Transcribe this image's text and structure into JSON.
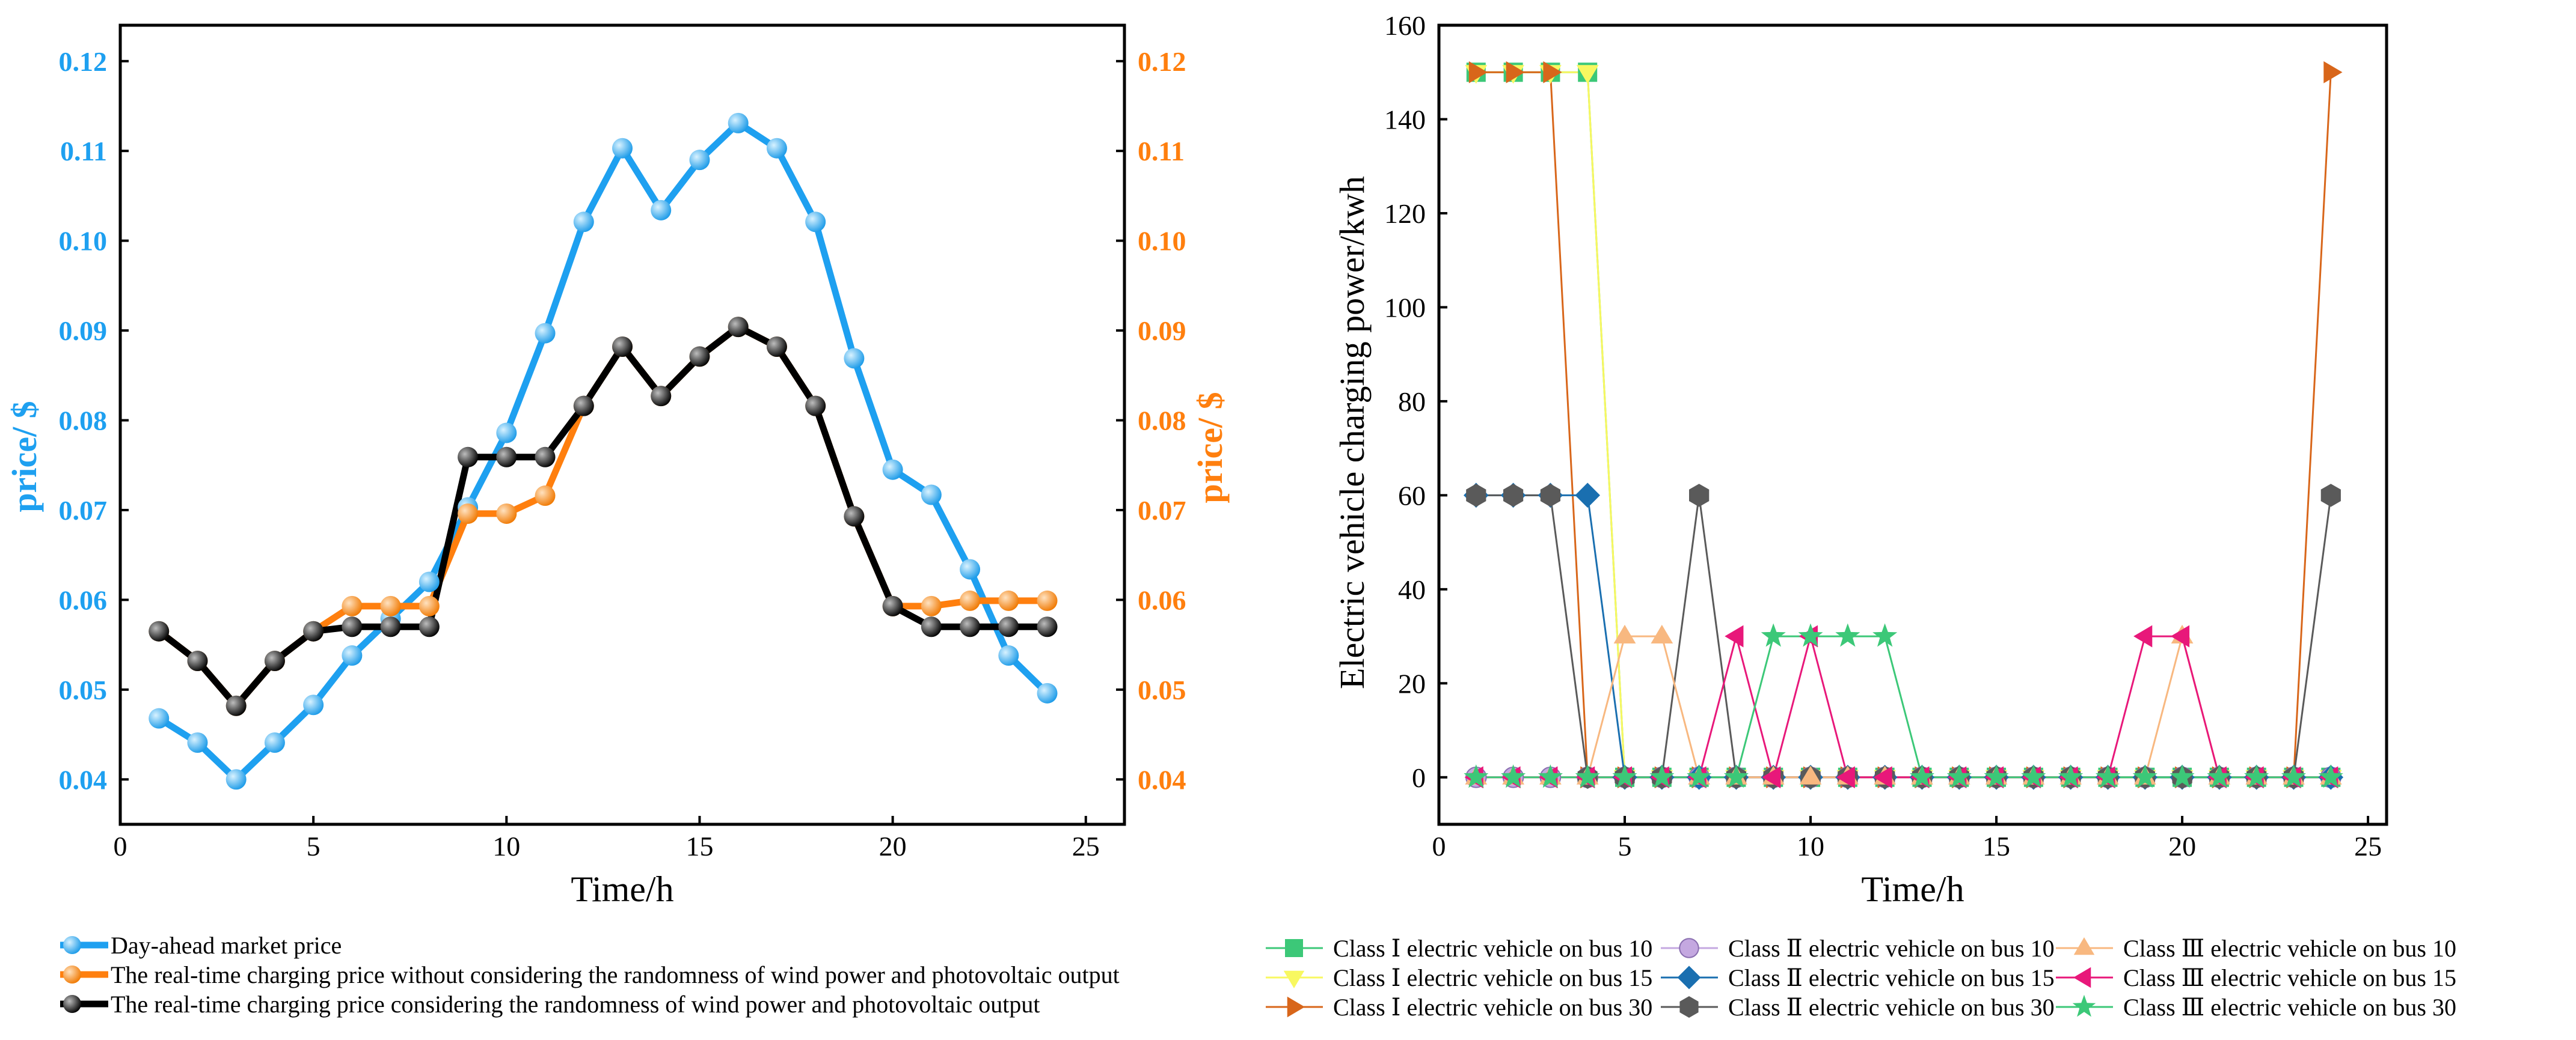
{
  "chart_data": [
    {
      "type": "line",
      "dual_axis": true,
      "xlabel": "Time/h",
      "ylabel_left": "price/ $",
      "ylabel_right": "price/ $",
      "xlim": [
        0,
        26
      ],
      "ylim": [
        0.035,
        0.124
      ],
      "xticks": [
        "0",
        "5",
        "10",
        "15",
        "20",
        "25"
      ],
      "yticks": [
        "0.04",
        "0.05",
        "0.06",
        "0.07",
        "0.08",
        "0.09",
        "0.10",
        "0.11",
        "0.12"
      ],
      "x": [
        1,
        2,
        3,
        4,
        5,
        6,
        7,
        8,
        9,
        10,
        11,
        12,
        13,
        14,
        15,
        16,
        17,
        18,
        19,
        20,
        21,
        22,
        23,
        24
      ],
      "series": [
        {
          "name": "Day-ahead market price",
          "color": "#1ea0f0",
          "values": [
            0.0468,
            0.0441,
            0.04,
            0.0441,
            0.0483,
            0.0538,
            0.0579,
            0.062,
            0.0703,
            0.0786,
            0.0897,
            0.1021,
            0.1103,
            0.1034,
            0.109,
            0.1131,
            0.1103,
            0.1021,
            0.0869,
            0.0745,
            0.0717,
            0.0634,
            0.0538,
            0.0496
          ]
        },
        {
          "name": "The real-time charging price without considering the randomness of wind power and photovoltaic output",
          "color": "#ff7f0e",
          "values": [
            0.0565,
            0.0532,
            0.0482,
            0.0532,
            0.0565,
            0.0593,
            0.0593,
            0.0593,
            0.0696,
            0.0696,
            0.0716,
            0.0816,
            0.0882,
            0.0827,
            0.0871,
            0.0904,
            0.0882,
            0.0816,
            0.0693,
            0.0593,
            0.0593,
            0.0599,
            0.0599,
            0.0599
          ]
        },
        {
          "name": "The real-time charging price considering the randomness of wind power and photovoltaic output",
          "color": "#000000",
          "values": [
            0.0565,
            0.0532,
            0.0482,
            0.0532,
            0.0565,
            0.057,
            0.057,
            0.057,
            0.0759,
            0.0759,
            0.0759,
            0.0816,
            0.0882,
            0.0827,
            0.0871,
            0.0904,
            0.0882,
            0.0816,
            0.0693,
            0.0593,
            0.057,
            0.057,
            0.057,
            0.057
          ]
        }
      ]
    },
    {
      "type": "line",
      "xlabel": "Time/h",
      "ylabel": "Electric vehicle charging power/kwh",
      "xlim": [
        0,
        25.5
      ],
      "ylim": [
        -10,
        160
      ],
      "xticks": [
        "0",
        "5",
        "10",
        "15",
        "20",
        "25"
      ],
      "yticks": [
        "0",
        "20",
        "40",
        "60",
        "80",
        "100",
        "120",
        "140",
        "160"
      ],
      "x": [
        1,
        2,
        3,
        4,
        5,
        6,
        7,
        8,
        9,
        10,
        11,
        12,
        13,
        14,
        15,
        16,
        17,
        18,
        19,
        20,
        21,
        22,
        23,
        24
      ],
      "series": [
        {
          "name": "Class Ⅰ electric vehicle on bus 10",
          "color": "#3cc878",
          "marker": "square",
          "values": [
            150,
            150,
            150,
            150,
            0,
            0,
            0,
            0,
            0,
            0,
            0,
            0,
            0,
            0,
            0,
            0,
            0,
            0,
            0,
            0,
            0,
            0,
            0,
            0
          ]
        },
        {
          "name": "Class Ⅰ electric vehicle on bus 15",
          "color": "#f8f860",
          "marker": "triangle-down",
          "values": [
            150,
            150,
            150,
            150,
            0,
            0,
            0,
            0,
            0,
            0,
            0,
            0,
            0,
            0,
            0,
            0,
            0,
            0,
            0,
            0,
            0,
            0,
            0,
            0
          ]
        },
        {
          "name": "Class Ⅰ electric vehicle on bus 30",
          "color": "#d8661a",
          "marker": "triangle-right",
          "values": [
            150,
            150,
            150,
            0,
            0,
            0,
            0,
            0,
            0,
            0,
            0,
            0,
            0,
            0,
            0,
            0,
            0,
            0,
            0,
            0,
            0,
            0,
            0,
            150
          ]
        },
        {
          "name": "Class Ⅱ electric vehicle on bus 10",
          "color": "#c4a8e0",
          "marker": "circle",
          "values": [
            0,
            0,
            0,
            0,
            0,
            0,
            0,
            0,
            0,
            0,
            0,
            0,
            0,
            0,
            0,
            0,
            0,
            0,
            0,
            0,
            0,
            0,
            0,
            0
          ]
        },
        {
          "name": "Class Ⅱ electric vehicle on bus 15",
          "color": "#1a6fb0",
          "marker": "diamond",
          "values": [
            60,
            60,
            60,
            60,
            0,
            0,
            0,
            0,
            0,
            0,
            0,
            0,
            0,
            0,
            0,
            0,
            0,
            0,
            0,
            0,
            0,
            0,
            0,
            0
          ]
        },
        {
          "name": "Class Ⅱ electric vehicle on bus 30",
          "color": "#5a5a5a",
          "marker": "hexagon",
          "values": [
            60,
            60,
            60,
            0,
            0,
            0,
            60,
            0,
            0,
            0,
            0,
            0,
            0,
            0,
            0,
            0,
            0,
            0,
            0,
            0,
            0,
            0,
            0,
            60
          ]
        },
        {
          "name": "Class Ⅲ electric vehicle on bus 10",
          "color": "#f8b880",
          "marker": "triangle-up",
          "values": [
            0,
            0,
            0,
            0,
            30,
            30,
            0,
            0,
            0,
            0,
            0,
            0,
            0,
            0,
            0,
            0,
            0,
            0,
            0,
            30,
            0,
            0,
            0,
            0
          ]
        },
        {
          "name": "Class Ⅲ electric vehicle on bus 15",
          "color": "#e8187a",
          "marker": "triangle-left",
          "values": [
            0,
            0,
            0,
            0,
            0,
            0,
            0,
            30,
            0,
            30,
            0,
            0,
            0,
            0,
            0,
            0,
            0,
            0,
            30,
            30,
            0,
            0,
            0,
            0
          ]
        },
        {
          "name": "Class Ⅲ electric vehicle on bus 30",
          "color": "#3cc878",
          "marker": "star",
          "values": [
            0,
            0,
            0,
            0,
            0,
            0,
            0,
            0,
            30,
            30,
            30,
            30,
            0,
            0,
            0,
            0,
            0,
            0,
            0,
            0,
            0,
            0,
            0,
            0
          ]
        }
      ]
    }
  ]
}
